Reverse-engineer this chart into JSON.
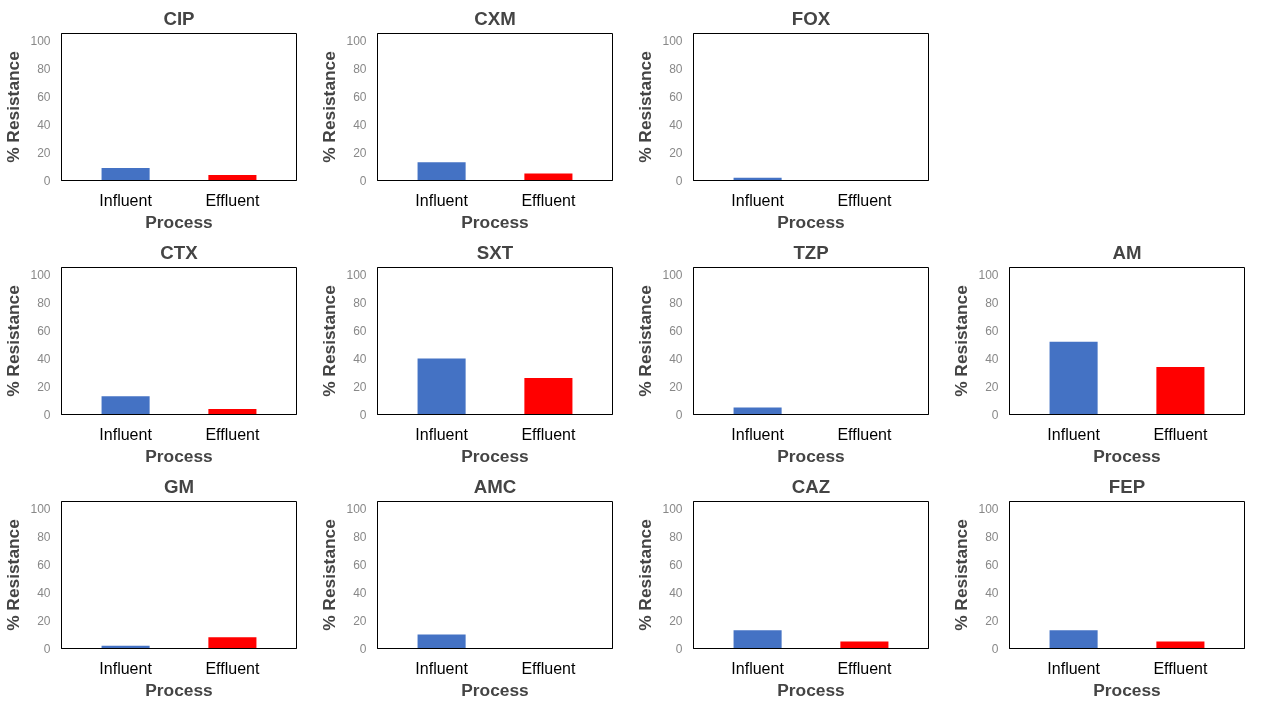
{
  "chart_data": [
    {
      "type": "bar",
      "title": "CIP",
      "xlabel": "Process",
      "ylabel": "% Resistance",
      "categories": [
        "Influent",
        "Effluent"
      ],
      "values": [
        9,
        4
      ],
      "colors": [
        "#4472c4",
        "#ff0000"
      ],
      "ylim": [
        0,
        105
      ],
      "yticks": [
        0,
        20,
        40,
        60,
        80,
        100
      ],
      "grid": false
    },
    {
      "type": "bar",
      "title": "CXM",
      "xlabel": "Process",
      "ylabel": "% Resistance",
      "categories": [
        "Influent",
        "Effluent"
      ],
      "values": [
        13,
        5
      ],
      "colors": [
        "#4472c4",
        "#ff0000"
      ],
      "ylim": [
        0,
        105
      ],
      "yticks": [
        0,
        20,
        40,
        60,
        80,
        100
      ],
      "grid": false
    },
    {
      "type": "bar",
      "title": "FOX",
      "xlabel": "Process",
      "ylabel": "% Resistance",
      "categories": [
        "Influent",
        "Effluent"
      ],
      "values": [
        2,
        0
      ],
      "colors": [
        "#4472c4",
        "#ff0000"
      ],
      "ylim": [
        0,
        105
      ],
      "yticks": [
        0,
        20,
        40,
        60,
        80,
        100
      ],
      "grid": false
    },
    {
      "type": "bar",
      "title": "CTX",
      "xlabel": "Process",
      "ylabel": "% Resistance",
      "categories": [
        "Influent",
        "Effluent"
      ],
      "values": [
        13,
        4
      ],
      "colors": [
        "#4472c4",
        "#ff0000"
      ],
      "ylim": [
        0,
        105
      ],
      "yticks": [
        0,
        20,
        40,
        60,
        80,
        100
      ],
      "grid": false
    },
    {
      "type": "bar",
      "title": "SXT",
      "xlabel": "Process",
      "ylabel": "% Resistance",
      "categories": [
        "Influent",
        "Effluent"
      ],
      "values": [
        40,
        26
      ],
      "colors": [
        "#4472c4",
        "#ff0000"
      ],
      "ylim": [
        0,
        105
      ],
      "yticks": [
        0,
        20,
        40,
        60,
        80,
        100
      ],
      "grid": false
    },
    {
      "type": "bar",
      "title": "TZP",
      "xlabel": "Process",
      "ylabel": "% Resistance",
      "categories": [
        "Influent",
        "Effluent"
      ],
      "values": [
        5,
        0
      ],
      "colors": [
        "#4472c4",
        "#ff0000"
      ],
      "ylim": [
        0,
        105
      ],
      "yticks": [
        0,
        20,
        40,
        60,
        80,
        100
      ],
      "grid": false
    },
    {
      "type": "bar",
      "title": "AM",
      "xlabel": "Process",
      "ylabel": "% Resistance",
      "categories": [
        "Influent",
        "Effluent"
      ],
      "values": [
        52,
        34
      ],
      "colors": [
        "#4472c4",
        "#ff0000"
      ],
      "ylim": [
        0,
        105
      ],
      "yticks": [
        0,
        20,
        40,
        60,
        80,
        100
      ],
      "grid": false
    },
    {
      "type": "bar",
      "title": "GM",
      "xlabel": "Process",
      "ylabel": "% Resistance",
      "categories": [
        "Influent",
        "Effluent"
      ],
      "values": [
        2,
        8
      ],
      "colors": [
        "#4472c4",
        "#ff0000"
      ],
      "ylim": [
        0,
        105
      ],
      "yticks": [
        0,
        20,
        40,
        60,
        80,
        100
      ],
      "grid": false
    },
    {
      "type": "bar",
      "title": "AMC",
      "xlabel": "Process",
      "ylabel": "% Resistance",
      "categories": [
        "Influent",
        "Effluent"
      ],
      "values": [
        10,
        0
      ],
      "colors": [
        "#4472c4",
        "#ff0000"
      ],
      "ylim": [
        0,
        105
      ],
      "yticks": [
        0,
        20,
        40,
        60,
        80,
        100
      ],
      "grid": false
    },
    {
      "type": "bar",
      "title": "CAZ",
      "xlabel": "Process",
      "ylabel": "% Resistance",
      "categories": [
        "Influent",
        "Effluent"
      ],
      "values": [
        13,
        5
      ],
      "colors": [
        "#4472c4",
        "#ff0000"
      ],
      "ylim": [
        0,
        105
      ],
      "yticks": [
        0,
        20,
        40,
        60,
        80,
        100
      ],
      "grid": false
    },
    {
      "type": "bar",
      "title": "FEP",
      "xlabel": "Process",
      "ylabel": "% Resistance",
      "categories": [
        "Influent",
        "Effluent"
      ],
      "values": [
        13,
        5
      ],
      "colors": [
        "#4472c4",
        "#ff0000"
      ],
      "ylim": [
        0,
        105
      ],
      "yticks": [
        0,
        20,
        40,
        60,
        80,
        100
      ],
      "grid": false
    }
  ]
}
